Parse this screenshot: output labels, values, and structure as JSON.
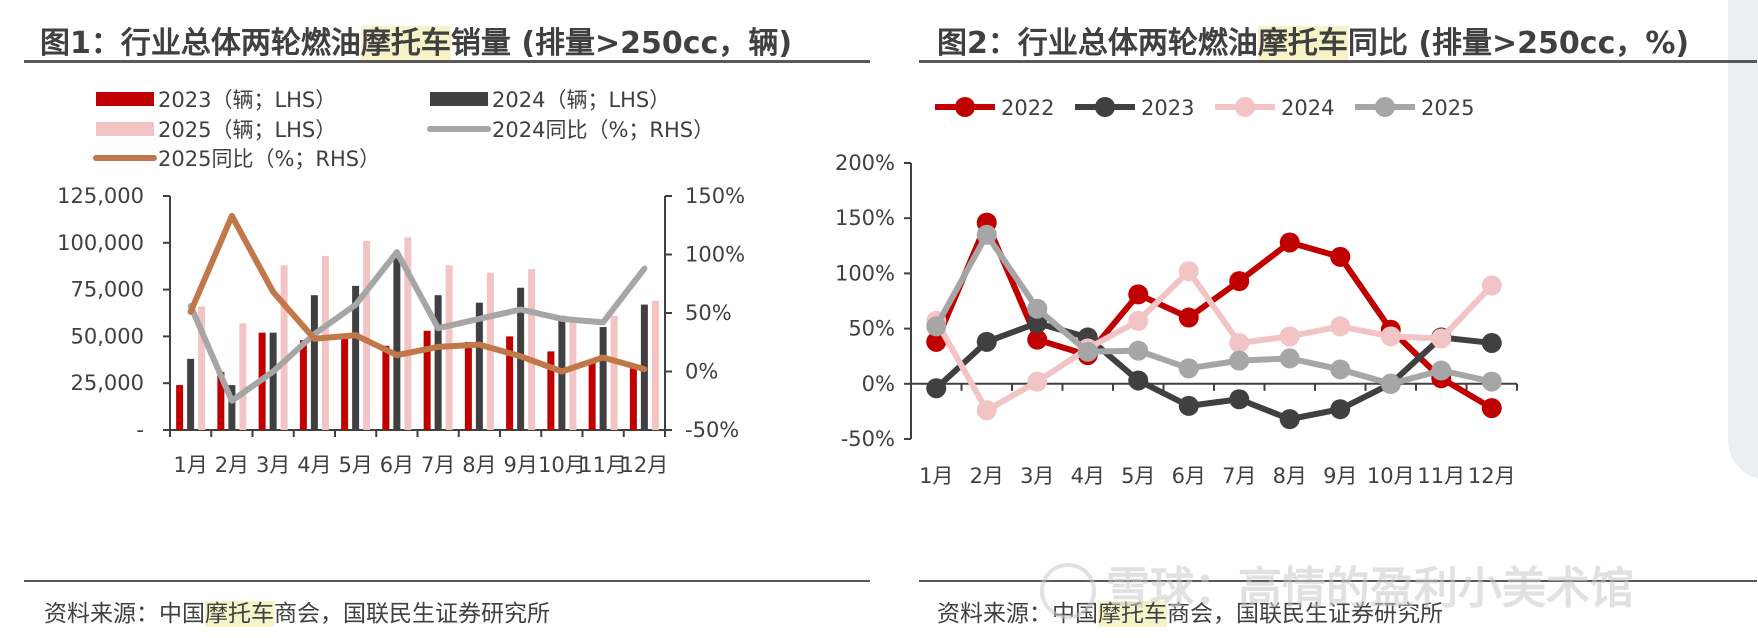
{
  "chart_data": [
    {
      "type": "bar+line",
      "title_parts": [
        "图1：行业总体两轮燃油",
        "摩托车",
        "销量 (排量>250cc，辆)"
      ],
      "source_parts": [
        "资料来源：中国",
        "摩托车",
        "商会，国联民生证券研究所"
      ],
      "categories": [
        "1月",
        "2月",
        "3月",
        "4月",
        "5月",
        "6月",
        "7月",
        "8月",
        "9月",
        "10月",
        "11月",
        "12月"
      ],
      "left_axis": {
        "ylim": [
          0,
          125000
        ],
        "ticks": [
          "-",
          "25,000",
          "50,000",
          "75,000",
          "100,000",
          "125,000"
        ],
        "tick_values": [
          0,
          25000,
          50000,
          75000,
          100000,
          125000
        ]
      },
      "right_axis": {
        "ylim": [
          -50,
          150
        ],
        "ticks": [
          "-50%",
          "0%",
          "50%",
          "100%",
          "150%"
        ],
        "tick_values": [
          -50,
          0,
          50,
          100,
          150
        ]
      },
      "series": [
        {
          "name": "2023（辆；LHS）",
          "kind": "bar",
          "color": "#c00000",
          "values": [
            24000,
            31000,
            52000,
            48000,
            50000,
            45000,
            53000,
            47000,
            50000,
            42000,
            36000,
            34000
          ]
        },
        {
          "name": "2024（辆；LHS）",
          "kind": "bar",
          "color": "#404040",
          "values": [
            38000,
            24000,
            52000,
            72000,
            77000,
            92000,
            72000,
            68000,
            76000,
            61000,
            55000,
            67000
          ]
        },
        {
          "name": "2025（辆；LHS）",
          "kind": "bar",
          "color": "#f2c4c6",
          "values": [
            66000,
            57000,
            88000,
            93000,
            101000,
            103000,
            88000,
            84000,
            86000,
            60000,
            61000,
            69000
          ]
        },
        {
          "name": "2024同比（%；RHS）",
          "kind": "line",
          "color": "#a6a6a6",
          "values": [
            56,
            -25,
            0,
            32,
            57,
            102,
            37,
            45,
            53,
            45,
            42,
            88
          ]
        },
        {
          "name": "2025同比（%；RHS）",
          "kind": "line",
          "color": "#c0784a",
          "values": [
            51,
            133,
            68,
            28,
            31,
            14,
            21,
            23,
            13,
            0,
            12,
            2
          ]
        }
      ]
    },
    {
      "type": "line",
      "title_parts": [
        "图2：行业总体两轮燃油",
        "摩托车",
        "同比 (排量>250cc，%)"
      ],
      "source_parts": [
        "资料来源：中国",
        "摩托车",
        "商会，国联民生证券研究所"
      ],
      "categories": [
        "1月",
        "2月",
        "3月",
        "4月",
        "5月",
        "6月",
        "7月",
        "8月",
        "9月",
        "10月",
        "11月",
        "12月"
      ],
      "y_axis": {
        "ylim": [
          -50,
          200
        ],
        "ticks": [
          "-50%",
          "0%",
          "50%",
          "100%",
          "150%",
          "200%"
        ],
        "tick_values": [
          -50,
          0,
          50,
          100,
          150,
          200
        ]
      },
      "series": [
        {
          "name": "2022",
          "color": "#c00000",
          "values": [
            38,
            146,
            40,
            26,
            81,
            60,
            93,
            128,
            115,
            49,
            5,
            -22
          ]
        },
        {
          "name": "2023",
          "color": "#404040",
          "values": [
            -4,
            38,
            55,
            42,
            3,
            -20,
            -14,
            -32,
            -23,
            0,
            42,
            37
          ]
        },
        {
          "name": "2024",
          "color": "#f2c4c6",
          "values": [
            57,
            -24,
            2,
            32,
            57,
            102,
            37,
            43,
            52,
            43,
            41,
            89
          ]
        },
        {
          "name": "2025",
          "color": "#a6a6a6",
          "values": [
            52,
            135,
            68,
            29,
            30,
            14,
            21,
            23,
            13,
            0,
            12,
            2
          ]
        }
      ]
    }
  ],
  "watermark": "雪球：高情的盈利小美术馆"
}
